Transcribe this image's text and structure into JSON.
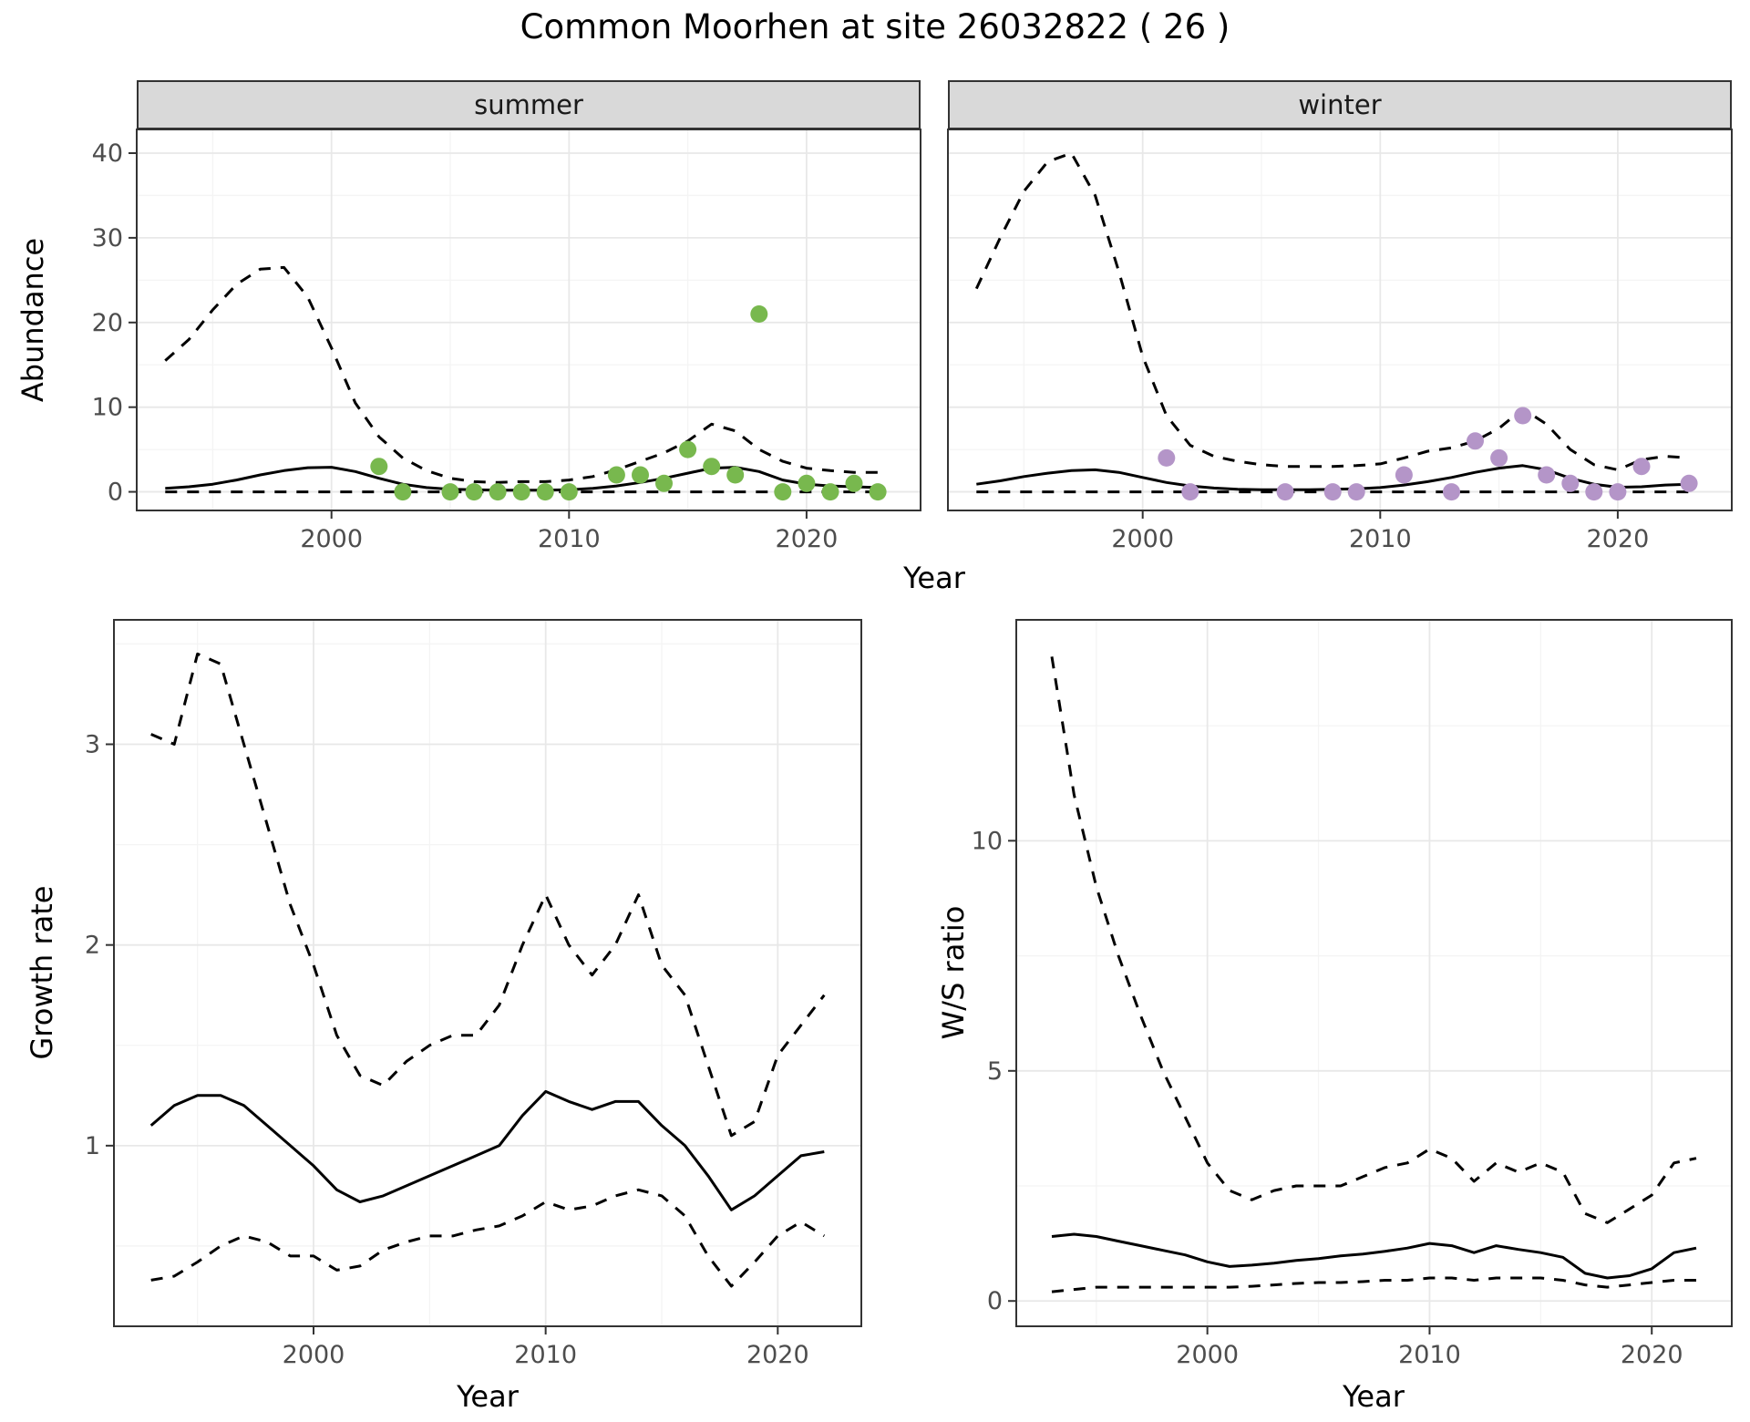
{
  "title": "Common Moorhen at site 26032822 ( 26 )",
  "chart_data": [
    {
      "type": "line",
      "facet_label": "summer",
      "xlabel": "Year",
      "ylabel": "Abundance",
      "xlim": [
        1991.8,
        2024.8
      ],
      "ylim": [
        -2.2,
        42.8
      ],
      "xticks": [
        2000,
        2010,
        2020
      ],
      "yticks": [
        0,
        10,
        20,
        30,
        40
      ],
      "xticks_minor": [
        1995,
        2005,
        2015
      ],
      "yticks_minor": [
        5,
        15,
        25,
        35
      ],
      "x": [
        1993,
        1994,
        1995,
        1996,
        1997,
        1998,
        1999,
        2000,
        2001,
        2002,
        2003,
        2004,
        2005,
        2006,
        2007,
        2008,
        2009,
        2010,
        2011,
        2012,
        2013,
        2014,
        2015,
        2016,
        2017,
        2018,
        2019,
        2020,
        2021,
        2022,
        2023
      ],
      "series": [
        {
          "name": "upper-ci",
          "line": "dashed",
          "color": "#000000",
          "values": [
            15.5,
            18,
            21.5,
            24.5,
            26.3,
            26.5,
            23,
            17,
            10.5,
            6.5,
            4,
            2.5,
            1.6,
            1.2,
            1.1,
            1.2,
            1.2,
            1.4,
            1.8,
            2.6,
            3.6,
            4.6,
            6,
            8,
            7.2,
            5,
            3.6,
            2.8,
            2.5,
            2.3,
            2.3
          ]
        },
        {
          "name": "median",
          "line": "solid",
          "color": "#000000",
          "values": [
            0.4,
            0.6,
            0.9,
            1.4,
            2,
            2.5,
            2.85,
            2.9,
            2.4,
            1.6,
            0.9,
            0.5,
            0.3,
            0.25,
            0.2,
            0.2,
            0.2,
            0.25,
            0.4,
            0.7,
            1.1,
            1.6,
            2.2,
            2.8,
            2.9,
            2.4,
            1.4,
            0.9,
            0.7,
            0.6,
            0.5
          ]
        },
        {
          "name": "lower-ci",
          "line": "dashed",
          "color": "#000000",
          "values": [
            0,
            0,
            0,
            0,
            0,
            0,
            0,
            0,
            0,
            0,
            0,
            0,
            0,
            0,
            0,
            0,
            0,
            0,
            0,
            0,
            0,
            0,
            0,
            0,
            0,
            0,
            0,
            0,
            0,
            0,
            0
          ]
        }
      ],
      "points": {
        "name": "observed-abundance-summer",
        "color": "#78b84e",
        "x": [
          2002,
          2003,
          2005,
          2006,
          2007,
          2008,
          2009,
          2010,
          2012,
          2013,
          2014,
          2015,
          2016,
          2017,
          2018,
          2019,
          2020,
          2021,
          2022,
          2023
        ],
        "y": [
          3,
          0,
          0,
          0,
          0,
          0,
          0,
          0,
          2,
          2,
          1,
          5,
          3,
          2,
          21,
          0,
          1,
          0,
          1,
          0
        ]
      }
    },
    {
      "type": "line",
      "facet_label": "winter",
      "xlabel": "Year",
      "ylabel": "Abundance",
      "xlim": [
        1991.8,
        2024.8
      ],
      "ylim": [
        -2.2,
        42.8
      ],
      "xticks": [
        2000,
        2010,
        2020
      ],
      "yticks": [
        0,
        10,
        20,
        30,
        40
      ],
      "xticks_minor": [
        1995,
        2005,
        2015
      ],
      "yticks_minor": [
        5,
        15,
        25,
        35
      ],
      "x": [
        1993,
        1994,
        1995,
        1996,
        1997,
        1998,
        1999,
        2000,
        2001,
        2002,
        2003,
        2004,
        2005,
        2006,
        2007,
        2008,
        2009,
        2010,
        2011,
        2012,
        2013,
        2014,
        2015,
        2016,
        2017,
        2018,
        2019,
        2020,
        2021,
        2022,
        2023
      ],
      "series": [
        {
          "name": "upper-ci",
          "line": "dashed",
          "color": "#000000",
          "values": [
            24,
            30,
            35.5,
            39,
            40,
            35,
            26,
            16,
            9,
            5.5,
            4.2,
            3.6,
            3.2,
            3,
            3,
            3,
            3.1,
            3.3,
            4,
            4.8,
            5.2,
            6,
            7.5,
            9.8,
            8,
            5,
            3.2,
            2.6,
            3.8,
            4.2,
            4
          ]
        },
        {
          "name": "median",
          "line": "solid",
          "color": "#000000",
          "values": [
            0.9,
            1.3,
            1.8,
            2.2,
            2.5,
            2.6,
            2.3,
            1.7,
            1.1,
            0.7,
            0.45,
            0.3,
            0.25,
            0.25,
            0.25,
            0.3,
            0.35,
            0.5,
            0.8,
            1.2,
            1.7,
            2.3,
            2.8,
            3.1,
            2.6,
            1.6,
            0.9,
            0.55,
            0.6,
            0.8,
            0.9
          ]
        },
        {
          "name": "lower-ci",
          "line": "dashed",
          "color": "#000000",
          "values": [
            0,
            0,
            0,
            0,
            0,
            0,
            0,
            0,
            0,
            0,
            0,
            0,
            0,
            0,
            0,
            0,
            0,
            0,
            0,
            0,
            0,
            0,
            0,
            0,
            0,
            0,
            0,
            0,
            0,
            0,
            0
          ]
        }
      ],
      "points": {
        "name": "observed-abundance-winter",
        "color": "#b495c8",
        "x": [
          2001,
          2002,
          2006,
          2008,
          2009,
          2011,
          2013,
          2014,
          2015,
          2016,
          2017,
          2018,
          2019,
          2020,
          2021,
          2023
        ],
        "y": [
          4,
          0,
          0,
          0,
          0,
          2,
          0,
          6,
          4,
          9,
          2,
          1,
          0,
          0,
          3,
          1
        ]
      }
    },
    {
      "type": "line",
      "facet_label": null,
      "xlabel": "Year",
      "ylabel": "Growth rate",
      "xlim": [
        1991.4,
        2023.6
      ],
      "ylim": [
        0.1,
        3.62
      ],
      "xticks": [
        2000,
        2010,
        2020
      ],
      "yticks": [
        1,
        2,
        3
      ],
      "xticks_minor": [
        1995,
        2005,
        2015
      ],
      "yticks_minor": [
        0.5,
        1.5,
        2.5,
        3.5
      ],
      "x": [
        1993,
        1994,
        1995,
        1996,
        1997,
        1998,
        1999,
        2000,
        2001,
        2002,
        2003,
        2004,
        2005,
        2006,
        2007,
        2008,
        2009,
        2010,
        2011,
        2012,
        2013,
        2014,
        2015,
        2016,
        2017,
        2018,
        2019,
        2020,
        2021,
        2022
      ],
      "series": [
        {
          "name": "upper-ci",
          "line": "dashed",
          "color": "#000000",
          "values": [
            3.05,
            3.0,
            3.45,
            3.4,
            3.0,
            2.6,
            2.2,
            1.9,
            1.55,
            1.35,
            1.3,
            1.42,
            1.5,
            1.55,
            1.55,
            1.7,
            2.0,
            2.25,
            2.0,
            1.85,
            2.0,
            2.25,
            1.9,
            1.75,
            1.4,
            1.05,
            1.12,
            1.45,
            1.6,
            1.75
          ]
        },
        {
          "name": "median",
          "line": "solid",
          "color": "#000000",
          "values": [
            1.1,
            1.2,
            1.25,
            1.25,
            1.2,
            1.1,
            1.0,
            0.9,
            0.78,
            0.72,
            0.75,
            0.8,
            0.85,
            0.9,
            0.95,
            1.0,
            1.15,
            1.27,
            1.22,
            1.18,
            1.22,
            1.22,
            1.1,
            1.0,
            0.85,
            0.68,
            0.75,
            0.85,
            0.95,
            0.97
          ]
        },
        {
          "name": "lower-ci",
          "line": "dashed",
          "color": "#000000",
          "values": [
            0.33,
            0.35,
            0.42,
            0.5,
            0.55,
            0.52,
            0.45,
            0.45,
            0.38,
            0.4,
            0.48,
            0.52,
            0.55,
            0.55,
            0.58,
            0.6,
            0.65,
            0.72,
            0.68,
            0.7,
            0.75,
            0.78,
            0.75,
            0.65,
            0.45,
            0.3,
            0.42,
            0.55,
            0.62,
            0.55
          ]
        }
      ],
      "points": null
    },
    {
      "type": "line",
      "facet_label": null,
      "xlabel": "Year",
      "ylabel": "W/S ratio",
      "xlim": [
        1991.4,
        2023.6
      ],
      "ylim": [
        -0.55,
        14.8
      ],
      "xticks": [
        2000,
        2010,
        2020
      ],
      "yticks": [
        0,
        5,
        10
      ],
      "xticks_minor": [
        1995,
        2005,
        2015
      ],
      "yticks_minor": [
        2.5,
        7.5,
        12.5
      ],
      "x": [
        1993,
        1994,
        1995,
        1996,
        1997,
        1998,
        1999,
        2000,
        2001,
        2002,
        2003,
        2004,
        2005,
        2006,
        2007,
        2008,
        2009,
        2010,
        2011,
        2012,
        2013,
        2014,
        2015,
        2016,
        2017,
        2018,
        2019,
        2020,
        2021,
        2022
      ],
      "series": [
        {
          "name": "upper-ci",
          "line": "dashed",
          "color": "#000000",
          "values": [
            14,
            11,
            9,
            7.5,
            6.2,
            5,
            4,
            3,
            2.4,
            2.2,
            2.4,
            2.5,
            2.5,
            2.5,
            2.7,
            2.9,
            3.0,
            3.3,
            3.1,
            2.6,
            3.0,
            2.8,
            3.0,
            2.8,
            1.9,
            1.7,
            2.0,
            2.3,
            3.0,
            3.1
          ]
        },
        {
          "name": "median",
          "line": "solid",
          "color": "#000000",
          "values": [
            1.4,
            1.45,
            1.4,
            1.3,
            1.2,
            1.1,
            1.0,
            0.85,
            0.75,
            0.78,
            0.82,
            0.88,
            0.92,
            0.98,
            1.02,
            1.08,
            1.15,
            1.25,
            1.2,
            1.05,
            1.2,
            1.12,
            1.05,
            0.95,
            0.6,
            0.5,
            0.55,
            0.7,
            1.05,
            1.15
          ]
        },
        {
          "name": "lower-ci",
          "line": "dashed",
          "color": "#000000",
          "values": [
            0.2,
            0.25,
            0.3,
            0.3,
            0.3,
            0.3,
            0.3,
            0.3,
            0.3,
            0.32,
            0.35,
            0.38,
            0.4,
            0.4,
            0.42,
            0.45,
            0.45,
            0.5,
            0.5,
            0.45,
            0.5,
            0.5,
            0.5,
            0.45,
            0.35,
            0.3,
            0.35,
            0.4,
            0.45,
            0.45
          ]
        }
      ],
      "points": null
    }
  ],
  "style": {
    "strip_background": "#d9d9d9",
    "panel_border": "#333333",
    "grid_major": "#e8e8e8",
    "grid_minor": "#f4f4f4",
    "tick_label_color": "#4d4d4d",
    "line_color": "#000000",
    "summer_point_color": "#78b84e",
    "winter_point_color": "#b495c8"
  }
}
